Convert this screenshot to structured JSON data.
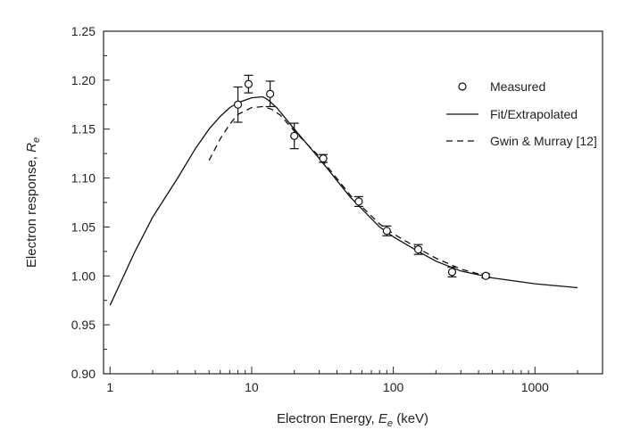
{
  "chart_data": {
    "type": "scatter",
    "xlabel_parts": [
      "Electron Energy, ",
      "E",
      "e",
      " (keV)"
    ],
    "ylabel_parts": [
      "Electron response, ",
      "R",
      "e"
    ],
    "x_scale": "log",
    "xlim": [
      0.9,
      3000
    ],
    "ylim": [
      0.9,
      1.25
    ],
    "x_ticks": [
      1,
      10,
      100,
      1000
    ],
    "x_tick_labels": [
      "1",
      "10",
      "100",
      "1000"
    ],
    "y_ticks": [
      0.9,
      0.95,
      1.0,
      1.05,
      1.1,
      1.15,
      1.2,
      1.25
    ],
    "y_tick_labels": [
      "0.90",
      "0.95",
      "1.00",
      "1.05",
      "1.10",
      "1.15",
      "1.20",
      "1.25"
    ],
    "grid": false,
    "legend_position": "top-right",
    "series": [
      {
        "name": "Measured",
        "style": "open-circle-markers-with-error-bars",
        "x": [
          8,
          9.5,
          13.5,
          20,
          32,
          57,
          90,
          150,
          260,
          450
        ],
        "y": [
          1.175,
          1.196,
          1.186,
          1.143,
          1.12,
          1.076,
          1.046,
          1.027,
          1.004,
          1.0
        ],
        "yerr": [
          0.018,
          0.009,
          0.013,
          0.013,
          0.004,
          0.005,
          0.005,
          0.005,
          0.005,
          0.002
        ]
      },
      {
        "name": "Fit/Extrapolated",
        "style": "solid-line",
        "x": [
          1,
          1.5,
          2,
          3,
          4,
          5,
          6,
          7,
          8,
          10,
          12,
          13,
          15,
          20,
          30,
          50,
          80,
          100,
          150,
          200,
          300,
          500,
          1000,
          2000
        ],
        "y": [
          0.97,
          1.025,
          1.06,
          1.1,
          1.13,
          1.15,
          1.163,
          1.172,
          1.177,
          1.182,
          1.183,
          1.18,
          1.172,
          1.15,
          1.12,
          1.08,
          1.05,
          1.04,
          1.025,
          1.015,
          1.005,
          0.998,
          0.992,
          0.988
        ]
      },
      {
        "name": "Gwin & Murray [12]",
        "style": "dashed-line",
        "x": [
          5,
          6,
          7,
          8,
          10,
          12,
          14,
          16,
          20,
          30,
          50,
          80,
          100,
          150,
          200,
          300,
          450
        ],
        "y": [
          1.118,
          1.14,
          1.155,
          1.165,
          1.172,
          1.173,
          1.17,
          1.164,
          1.148,
          1.122,
          1.082,
          1.053,
          1.043,
          1.028,
          1.018,
          1.007,
          1.0
        ]
      }
    ]
  }
}
